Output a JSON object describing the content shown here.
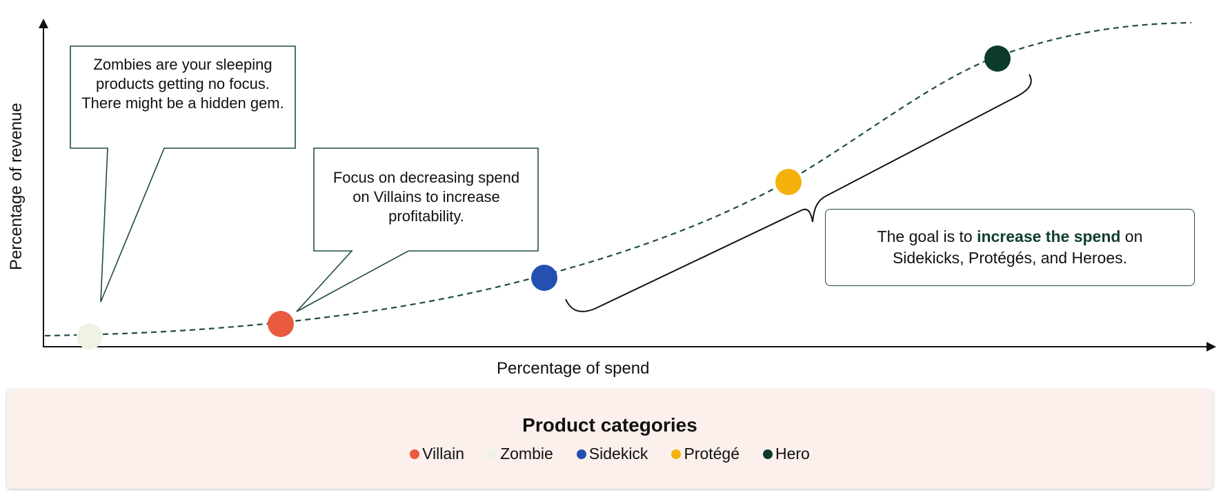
{
  "axes": {
    "x_label": "Percentage of spend",
    "y_label": "Percentage of revenue"
  },
  "callouts": {
    "zombies": "Zombies are your sleeping products getting no focus. There might be a hidden gem.",
    "villains": "Focus on decreasing spend on Villains to increase profitability."
  },
  "goal": {
    "prefix": "The goal is to ",
    "emphasis": "increase the spend",
    "suffix": " on Sidekicks, Protégés, and Heroes."
  },
  "legend": {
    "title": "Product categories",
    "items": [
      {
        "label": "Villain",
        "color": "#ea5a3f"
      },
      {
        "label": "Zombie",
        "color": "#eef3e4"
      },
      {
        "label": "Sidekick",
        "color": "#2450b2"
      },
      {
        "label": "Protégé",
        "color": "#f5b10b"
      },
      {
        "label": "Hero",
        "color": "#0c3b2e"
      }
    ]
  },
  "curve_points": [
    {
      "category": "Zombie",
      "color": "#eef3e4"
    },
    {
      "category": "Villain",
      "color": "#ea5a3f"
    },
    {
      "category": "Sidekick",
      "color": "#2450b2"
    },
    {
      "category": "Protégé",
      "color": "#f5b10b"
    },
    {
      "category": "Hero",
      "color": "#0c3b2e"
    }
  ]
}
